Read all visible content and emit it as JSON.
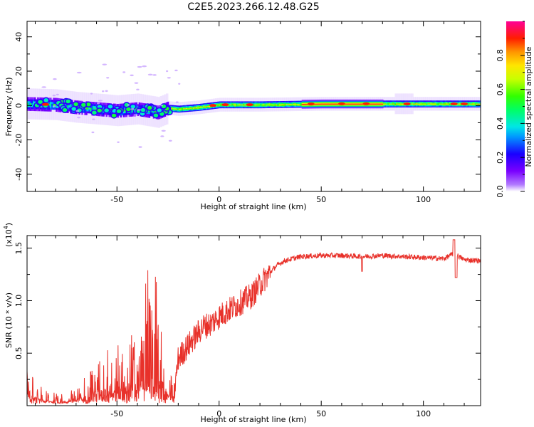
{
  "title": "C2E5.2023.266.12.48.G25",
  "chart_data": [
    {
      "type": "heatmap",
      "name": "spectrogram",
      "xlabel": "Height of straight line (km)",
      "ylabel": "Frequency (Hz)",
      "xlim": [
        -94,
        128
      ],
      "ylim": [
        -50,
        49
      ],
      "xticks": [
        -50,
        0,
        50,
        100
      ],
      "yticks": [
        -40,
        -20,
        0,
        20,
        40
      ],
      "colorbar": {
        "label": "Normalized spectral amplitude",
        "range": [
          0.0,
          1.0
        ],
        "ticks": [
          0.0,
          0.2,
          0.4,
          0.6,
          0.8
        ]
      },
      "ridge_center_hz": [
        [
          -94,
          1.0
        ],
        [
          -80,
          0.5
        ],
        [
          -70,
          -1.0
        ],
        [
          -60,
          -2.0
        ],
        [
          -50,
          -3.0
        ],
        [
          -40,
          -2.0
        ],
        [
          -30,
          -4.0
        ],
        [
          -25,
          -1.5
        ],
        [
          -20,
          -2.0
        ],
        [
          -10,
          -1.0
        ],
        [
          0,
          0.5
        ],
        [
          20,
          0.5
        ],
        [
          50,
          1.0
        ],
        [
          100,
          1.0
        ],
        [
          128,
          1.0
        ]
      ]
    },
    {
      "type": "line",
      "name": "snr",
      "xlabel": "Height of straight line (km)",
      "ylabel": "SNR (10 * v/v)",
      "scale_label": "(x10",
      "scale_exp": "4",
      "scale_close": ")",
      "xlim": [
        -94,
        128
      ],
      "ylim": [
        0,
        1.62
      ],
      "xticks": [
        -50,
        0,
        50,
        100
      ],
      "yticks": [
        0.5,
        1.0,
        1.5
      ],
      "color": "#e8312a",
      "x": [
        -94,
        -88,
        -82,
        -76,
        -70,
        -64,
        -58,
        -52,
        -46,
        -40,
        -36,
        -32,
        -28,
        -24,
        -22,
        -20,
        -16,
        -12,
        -8,
        -4,
        0,
        4,
        8,
        12,
        16,
        20,
        24,
        28,
        32,
        36,
        40,
        50,
        60,
        70,
        80,
        90,
        100,
        110,
        115,
        120,
        128
      ],
      "y": [
        0.15,
        0.08,
        0.05,
        0.04,
        0.07,
        0.14,
        0.22,
        0.26,
        0.28,
        0.35,
        0.4,
        0.45,
        0.32,
        0.15,
        0.1,
        0.45,
        0.55,
        0.65,
        0.75,
        0.78,
        0.85,
        0.9,
        0.95,
        1.0,
        1.05,
        1.15,
        1.25,
        1.33,
        1.38,
        1.4,
        1.42,
        1.43,
        1.43,
        1.42,
        1.43,
        1.42,
        1.41,
        1.4,
        1.45,
        1.39,
        1.38
      ]
    }
  ]
}
